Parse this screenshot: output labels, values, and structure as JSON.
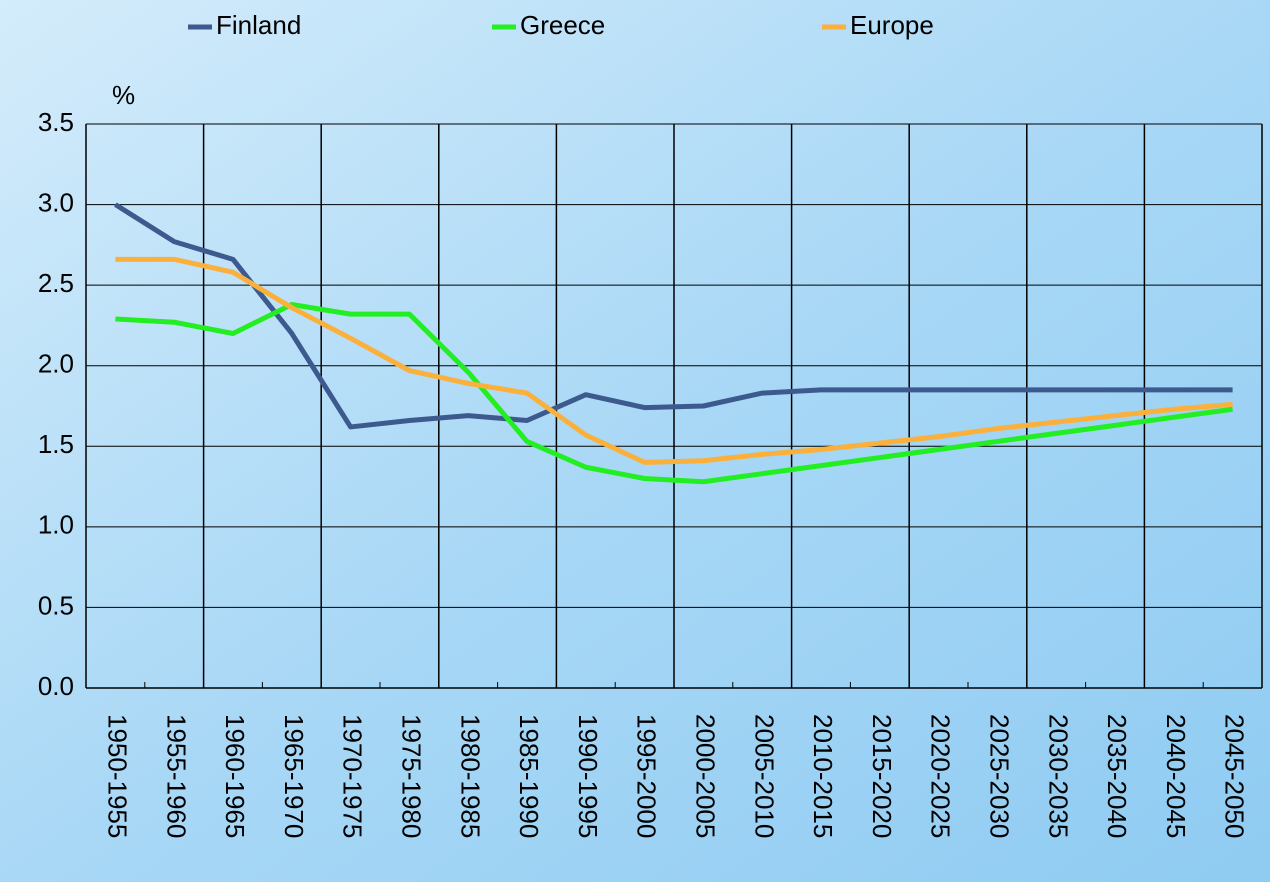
{
  "chart_data": {
    "type": "line",
    "y_label": "%",
    "categories": [
      "1950-1955",
      "1955-1960",
      "1960-1965",
      "1965-1970",
      "1970-1975",
      "1975-1980",
      "1980-1985",
      "1985-1990",
      "1990-1995",
      "1995-2000",
      "2000-2005",
      "2005-2010",
      "2010-2015",
      "2015-2020",
      "2020-2025",
      "2025-2030",
      "2030-2035",
      "2035-2040",
      "2040-2045",
      "2045-2050"
    ],
    "series": [
      {
        "name": "Finland",
        "color": "#3d5a8e",
        "values": [
          3.0,
          2.77,
          2.66,
          2.2,
          1.62,
          1.66,
          1.69,
          1.66,
          1.82,
          1.74,
          1.75,
          1.83,
          1.85,
          1.85,
          1.85,
          1.85,
          1.85,
          1.85,
          1.85,
          1.85
        ]
      },
      {
        "name": "Greece",
        "color": "#22ee22",
        "values": [
          2.29,
          2.27,
          2.2,
          2.38,
          2.32,
          2.32,
          1.96,
          1.53,
          1.37,
          1.3,
          1.28,
          1.33,
          1.38,
          1.43,
          1.48,
          1.53,
          1.58,
          1.63,
          1.68,
          1.73
        ]
      },
      {
        "name": "Europe",
        "color": "#fbb03b",
        "values": [
          2.66,
          2.66,
          2.58,
          2.36,
          2.17,
          1.97,
          1.89,
          1.83,
          1.57,
          1.4,
          1.41,
          1.45,
          1.48,
          1.52,
          1.56,
          1.61,
          1.65,
          1.69,
          1.73,
          1.76
        ]
      }
    ],
    "ylim": [
      0,
      3.5
    ],
    "yticks": [
      {
        "value": 0,
        "label": "0.0"
      },
      {
        "value": 0.5,
        "label": "0.5"
      },
      {
        "value": 1,
        "label": "1.0"
      },
      {
        "value": 1.5,
        "label": "1.5"
      },
      {
        "value": 2,
        "label": "2.0"
      },
      {
        "value": 2.5,
        "label": "2.5"
      },
      {
        "value": 3,
        "label": "3.0"
      },
      {
        "value": 3.5,
        "label": "3.5"
      }
    ],
    "grid": true,
    "legend": "top"
  }
}
